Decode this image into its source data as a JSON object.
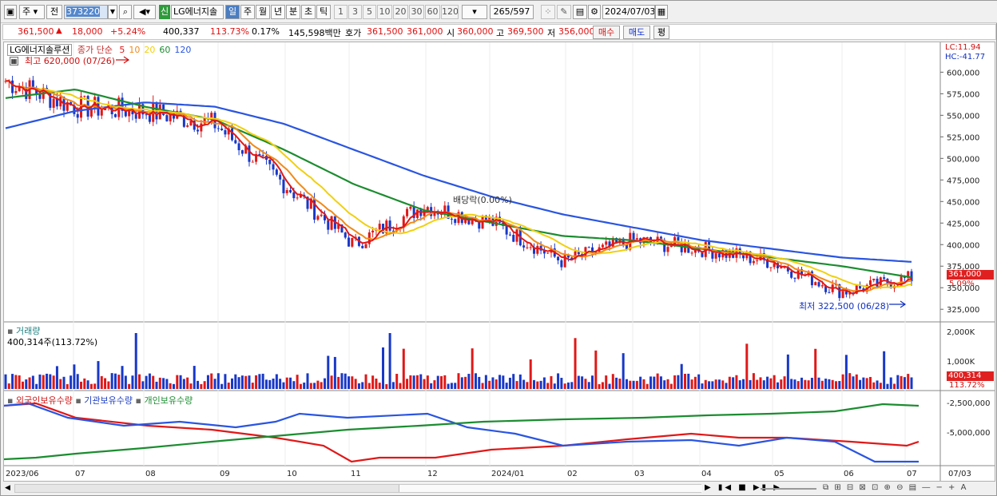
{
  "toolbar": {
    "market": "주",
    "mode": "전",
    "code": "373220",
    "credit_badge": "신",
    "stock_name": "LG에너지솔",
    "period_buttons": [
      "일",
      "주",
      "월",
      "년",
      "분",
      "초",
      "틱"
    ],
    "num_buttons": [
      "1",
      "3",
      "5",
      "10",
      "20",
      "30",
      "60",
      "120"
    ],
    "count": "265",
    "count_total": "/597",
    "date": "2024/07/03"
  },
  "quote": {
    "price": "361,500",
    "change_arrow": "▲",
    "change": "18,000",
    "change_pct": "+5.24%",
    "volume": "400,337",
    "volume_ratio": "113.73%",
    "turnover": "0.17%",
    "amount": "145,598백만",
    "hoga_label": "호가",
    "bid": "361,500",
    "ask": "361,000",
    "open_label": "시",
    "open": "360,000",
    "high_label": "고",
    "high": "369,500",
    "low_label": "저",
    "low": "356,000",
    "buy_label": "매수",
    "sell_label": "매도",
    "eval_label": "평"
  },
  "price_panel": {
    "legend_title": "LG에너지솔루션",
    "legend_ma_label": "종가 단순",
    "ma_labels": [
      "5",
      "10",
      "20",
      "60",
      "120"
    ],
    "ma_colors": [
      "#e01818",
      "#f08a1a",
      "#f0d010",
      "#1c8c30",
      "#2a55e0"
    ],
    "lc": "LC:11.94",
    "hc": "HC:-41.77",
    "high_annotation": "최고 620,000 (07/26)",
    "low_annotation": "최저 322,500 (06/28)",
    "dividend_annotation": "배당락(0.00%)",
    "current_price_tag": "361,000",
    "current_pct_tag": "5.09%",
    "y_ticks": [
      "600,000",
      "575,000",
      "550,000",
      "525,000",
      "500,000",
      "475,000",
      "450,000",
      "425,000",
      "400,000",
      "375,000",
      "350,000",
      "325,000"
    ]
  },
  "volume_panel": {
    "legend": "거래량",
    "value": "400,314주(113.72%)",
    "y_ticks": [
      "2,000K",
      "1,000K"
    ],
    "tag_value": "400,314",
    "tag_pct": "113.72%"
  },
  "holding_panel": {
    "legends": [
      "외국인보유수량",
      "기관보유수량",
      "개인보유수량"
    ],
    "legend_colors": [
      "#e01818",
      "#2a55e0",
      "#1c8c30"
    ],
    "y_ticks": [
      "-2,500,000",
      "-5,000,000"
    ]
  },
  "x_axis": [
    "2023/06",
    "07",
    "08",
    "09",
    "10",
    "11",
    "12",
    "2024/01",
    "02",
    "03",
    "04",
    "05",
    "06",
    "07",
    "07/03"
  ],
  "chart_data": {
    "type": "line",
    "title": "LG에너지솔루션",
    "xlabel": "",
    "ylabel": "",
    "ylim": [
      315000,
      630000
    ],
    "x": [
      "2023/06",
      "07",
      "08",
      "09",
      "10",
      "11",
      "12",
      "2024/01",
      "02",
      "03",
      "04",
      "05",
      "06",
      "07"
    ],
    "series": [
      {
        "name": "종가",
        "values": [
          590000,
          560000,
          555000,
          540000,
          470000,
          400000,
          445000,
          425000,
          380000,
          405000,
          395000,
          380000,
          345000,
          361500
        ]
      },
      {
        "name": "120",
        "values": [
          535000,
          555000,
          565000,
          560000,
          540000,
          510000,
          480000,
          455000,
          435000,
          420000,
          405000,
          395000,
          385000,
          380000
        ]
      },
      {
        "name": "60",
        "values": [
          570000,
          580000,
          560000,
          545000,
          510000,
          470000,
          440000,
          425000,
          410000,
          405000,
          395000,
          385000,
          375000,
          362000
        ]
      }
    ],
    "annotations": [
      "최고 620,000 (07/26)",
      "최저 322,500 (06/28)",
      "배당락(0.00%)"
    ]
  }
}
